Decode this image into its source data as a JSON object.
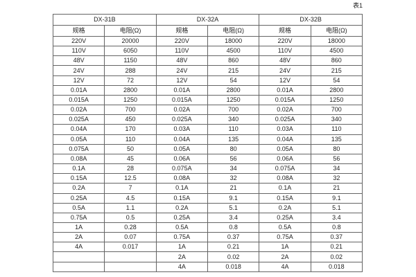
{
  "page": {
    "table_caption": "表1"
  },
  "table": {
    "groups": [
      {
        "name": "DX-31B",
        "col_headers": [
          "规格",
          "电阻(Ω)"
        ]
      },
      {
        "name": "DX-32A",
        "col_headers": [
          "规格",
          "电阻(Ω)"
        ]
      },
      {
        "name": "DX-32B",
        "col_headers": [
          "规格",
          "电阻(Ω)"
        ]
      }
    ],
    "rows": [
      [
        "220V",
        "20000",
        "220V",
        "18000",
        "220V",
        "18000"
      ],
      [
        "110V",
        "6050",
        "110V",
        "4500",
        "110V",
        "4500"
      ],
      [
        "48V",
        "1150",
        "48V",
        "860",
        "48V",
        "860"
      ],
      [
        "24V",
        "288",
        "24V",
        "215",
        "24V",
        "215"
      ],
      [
        "12V",
        "72",
        "12V",
        "54",
        "12V",
        "54"
      ],
      [
        "0.01A",
        "2800",
        "0.01A",
        "2800",
        "0.01A",
        "2800"
      ],
      [
        "0.015A",
        "1250",
        "0.015A",
        "1250",
        "0.015A",
        "1250"
      ],
      [
        "0.02A",
        "700",
        "0.02A",
        "700",
        "0.02A",
        "700"
      ],
      [
        "0.025A",
        "450",
        "0.025A",
        "340",
        "0.025A",
        "340"
      ],
      [
        "0.04A",
        "170",
        "0.03A",
        "110",
        "0.03A",
        "110"
      ],
      [
        "0.05A",
        "110",
        "0.04A",
        "135",
        "0.04A",
        "135"
      ],
      [
        "0.075A",
        "50",
        "0.05A",
        "80",
        "0.05A",
        "80"
      ],
      [
        "0.08A",
        "45",
        "0.06A",
        "56",
        "0.06A",
        "56"
      ],
      [
        "0.1A",
        "28",
        "0.075A",
        "34",
        "0.075A",
        "34"
      ],
      [
        "0.15A",
        "12.5",
        "0.08A",
        "32",
        "0.08A",
        "32"
      ],
      [
        "0.2A",
        "7",
        "0.1A",
        "21",
        "0.1A",
        "21"
      ],
      [
        "0.25A",
        "4.5",
        "0.15A",
        "9.1",
        "0.15A",
        "9.1"
      ],
      [
        "0.5A",
        "1.1",
        "0.2A",
        "5.1",
        "0.2A",
        "5.1"
      ],
      [
        "0.75A",
        "0.5",
        "0.25A",
        "3.4",
        "0.25A",
        "3.4"
      ],
      [
        "1A",
        "0.28",
        "0.5A",
        "0.8",
        "0.5A",
        "0.8"
      ],
      [
        "2A",
        "0.07",
        "0.75A",
        "0.37",
        "0.75A",
        "0.37"
      ],
      [
        "4A",
        "0.017",
        "1A",
        "0.21",
        "1A",
        "0.21"
      ],
      [
        "",
        "",
        "2A",
        "0.02",
        "2A",
        "0.02"
      ],
      [
        "",
        "",
        "4A",
        "0.018",
        "4A",
        "0.018"
      ]
    ]
  }
}
